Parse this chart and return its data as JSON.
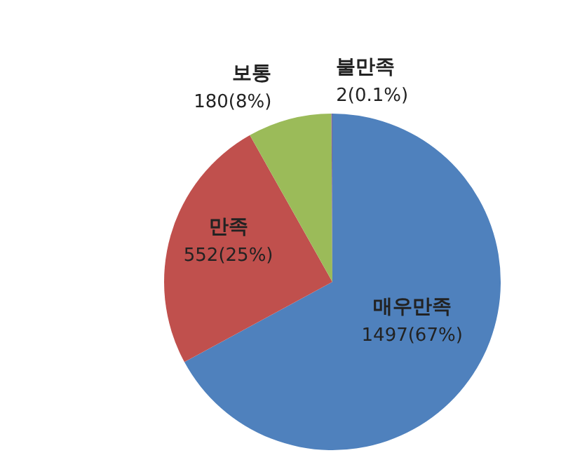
{
  "chart_data": {
    "type": "pie",
    "categories": [
      "매우만족",
      "만족",
      "보통",
      "불만족"
    ],
    "values": [
      1497,
      552,
      180,
      2
    ],
    "value_labels": [
      "1497(67%)",
      "552(25%)",
      "180(8%)",
      "2(0.1%)"
    ],
    "colors": [
      "#4f81bd",
      "#c0504d",
      "#9bbb59",
      "#8064a2"
    ]
  }
}
